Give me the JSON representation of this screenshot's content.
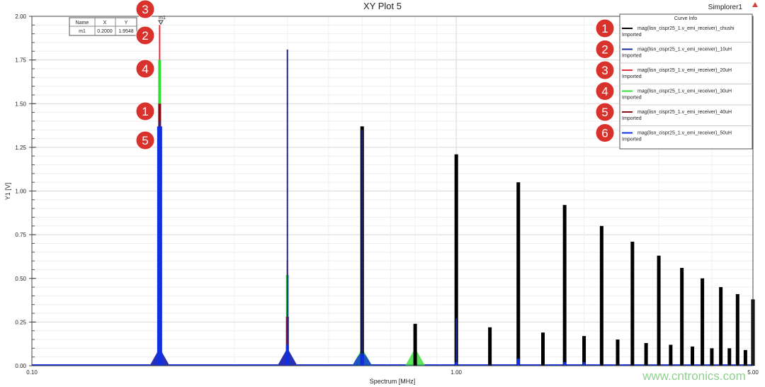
{
  "header": {
    "title": "XY Plot 5",
    "app": "Simplorer1"
  },
  "marker_table": {
    "headers": [
      "Name",
      "X",
      "Y"
    ],
    "rows": [
      [
        "m1",
        "0.2000",
        "1.9548"
      ]
    ],
    "marker_label": "m1"
  },
  "legend": {
    "title": "Curve Info",
    "entries": [
      {
        "num": "1",
        "name": "mag(lisn_cispr25_1.v_emi_receiver)_chushi",
        "sub": "Imported",
        "color": "#000000"
      },
      {
        "num": "2",
        "name": "mag(lisn_cispr25_1.v_emi_receiver)_10uH",
        "sub": "Imported",
        "color": "#1a2a9a"
      },
      {
        "num": "3",
        "name": "mag(lisn_cispr25_1.v_emi_receiver)_20uH",
        "sub": "Imported",
        "color": "#e8303a"
      },
      {
        "num": "4",
        "name": "mag(lisn_cispr25_1.v_emi_receiver)_30uH",
        "sub": "Imported",
        "color": "#33dd33"
      },
      {
        "num": "5",
        "name": "mag(lisn_cispr25_1.v_emi_receiver)_40uH",
        "sub": "Imported",
        "color": "#8b0a14"
      },
      {
        "num": "6",
        "name": "mag(lisn_cispr25_1.v_emi_receiver)_50uH",
        "sub": "Imported",
        "color": "#1030e0"
      }
    ]
  },
  "annotations": [
    "3",
    "2",
    "4",
    "1",
    "5"
  ],
  "watermark": "www.cntronics.com",
  "chart_data": {
    "type": "line",
    "title": "XY Plot 5",
    "xlabel": "Spectrum [MHz]",
    "ylabel": "Y1 [V]",
    "xscale": "log",
    "xlim": [
      0.1,
      5.0
    ],
    "ylim": [
      0,
      2.0
    ],
    "xticks": [
      "0.10",
      "1.00",
      "5.00"
    ],
    "yticks": [
      "0.00",
      "0.25",
      "0.50",
      "0.75",
      "1.00",
      "1.25",
      "1.50",
      "1.75",
      "2.00"
    ],
    "grid": true,
    "legend_position": "top-right",
    "series": [
      {
        "name": "mag(lisn_cispr25_1.v_emi_receiver)_chushi",
        "color": "#000000",
        "peaks": [
          [
            0.2,
            0.08
          ],
          [
            0.6,
            1.37
          ],
          [
            0.8,
            0.24
          ],
          [
            1.0,
            1.21
          ],
          [
            1.2,
            0.22
          ],
          [
            1.4,
            1.05
          ],
          [
            1.6,
            0.19
          ],
          [
            1.8,
            0.92
          ],
          [
            2.0,
            0.17
          ],
          [
            2.2,
            0.8
          ],
          [
            2.4,
            0.15
          ],
          [
            2.6,
            0.71
          ],
          [
            2.8,
            0.13
          ],
          [
            3.0,
            0.63
          ],
          [
            3.2,
            0.12
          ],
          [
            3.4,
            0.56
          ],
          [
            3.6,
            0.11
          ],
          [
            3.8,
            0.5
          ],
          [
            4.0,
            0.1
          ],
          [
            4.2,
            0.45
          ],
          [
            4.4,
            0.1
          ],
          [
            4.6,
            0.41
          ],
          [
            4.8,
            0.09
          ],
          [
            5.0,
            0.38
          ]
        ]
      },
      {
        "name": "mag(lisn_cispr25_1.v_emi_receiver)_10uH",
        "color": "#1a2a9a",
        "peaks": [
          [
            0.2,
            1.4
          ],
          [
            0.4,
            1.81
          ],
          [
            0.6,
            1.35
          ],
          [
            1.0,
            0.27
          ]
        ]
      },
      {
        "name": "mag(lisn_cispr25_1.v_emi_receiver)_20uH",
        "color": "#e8303a",
        "peaks": [
          [
            0.2,
            1.95
          ],
          [
            0.4,
            0.6
          ],
          [
            0.6,
            0.48
          ]
        ]
      },
      {
        "name": "mag(lisn_cispr25_1.v_emi_receiver)_30uH",
        "color": "#33dd33",
        "peaks": [
          [
            0.2,
            1.75
          ],
          [
            0.4,
            0.52
          ],
          [
            0.6,
            0.1
          ],
          [
            0.8,
            0.11
          ],
          [
            1.2,
            0.03
          ],
          [
            1.4,
            0.03
          ]
        ]
      },
      {
        "name": "mag(lisn_cispr25_1.v_emi_receiver)_40uH",
        "color": "#8b0a14",
        "peaks": [
          [
            0.2,
            1.5
          ],
          [
            0.4,
            0.28
          ],
          [
            0.6,
            0.05
          ],
          [
            0.8,
            0.03
          ],
          [
            1.0,
            0.04
          ]
        ]
      },
      {
        "name": "mag(lisn_cispr25_1.v_emi_receiver)_50uH",
        "color": "#1030e0",
        "peaks": [
          [
            0.2,
            1.37
          ],
          [
            0.4,
            0.12
          ],
          [
            0.6,
            0.06
          ],
          [
            1.0,
            0.02
          ],
          [
            1.4,
            0.04
          ],
          [
            1.8,
            0.02
          ],
          [
            2.0,
            0.02
          ]
        ]
      }
    ]
  }
}
